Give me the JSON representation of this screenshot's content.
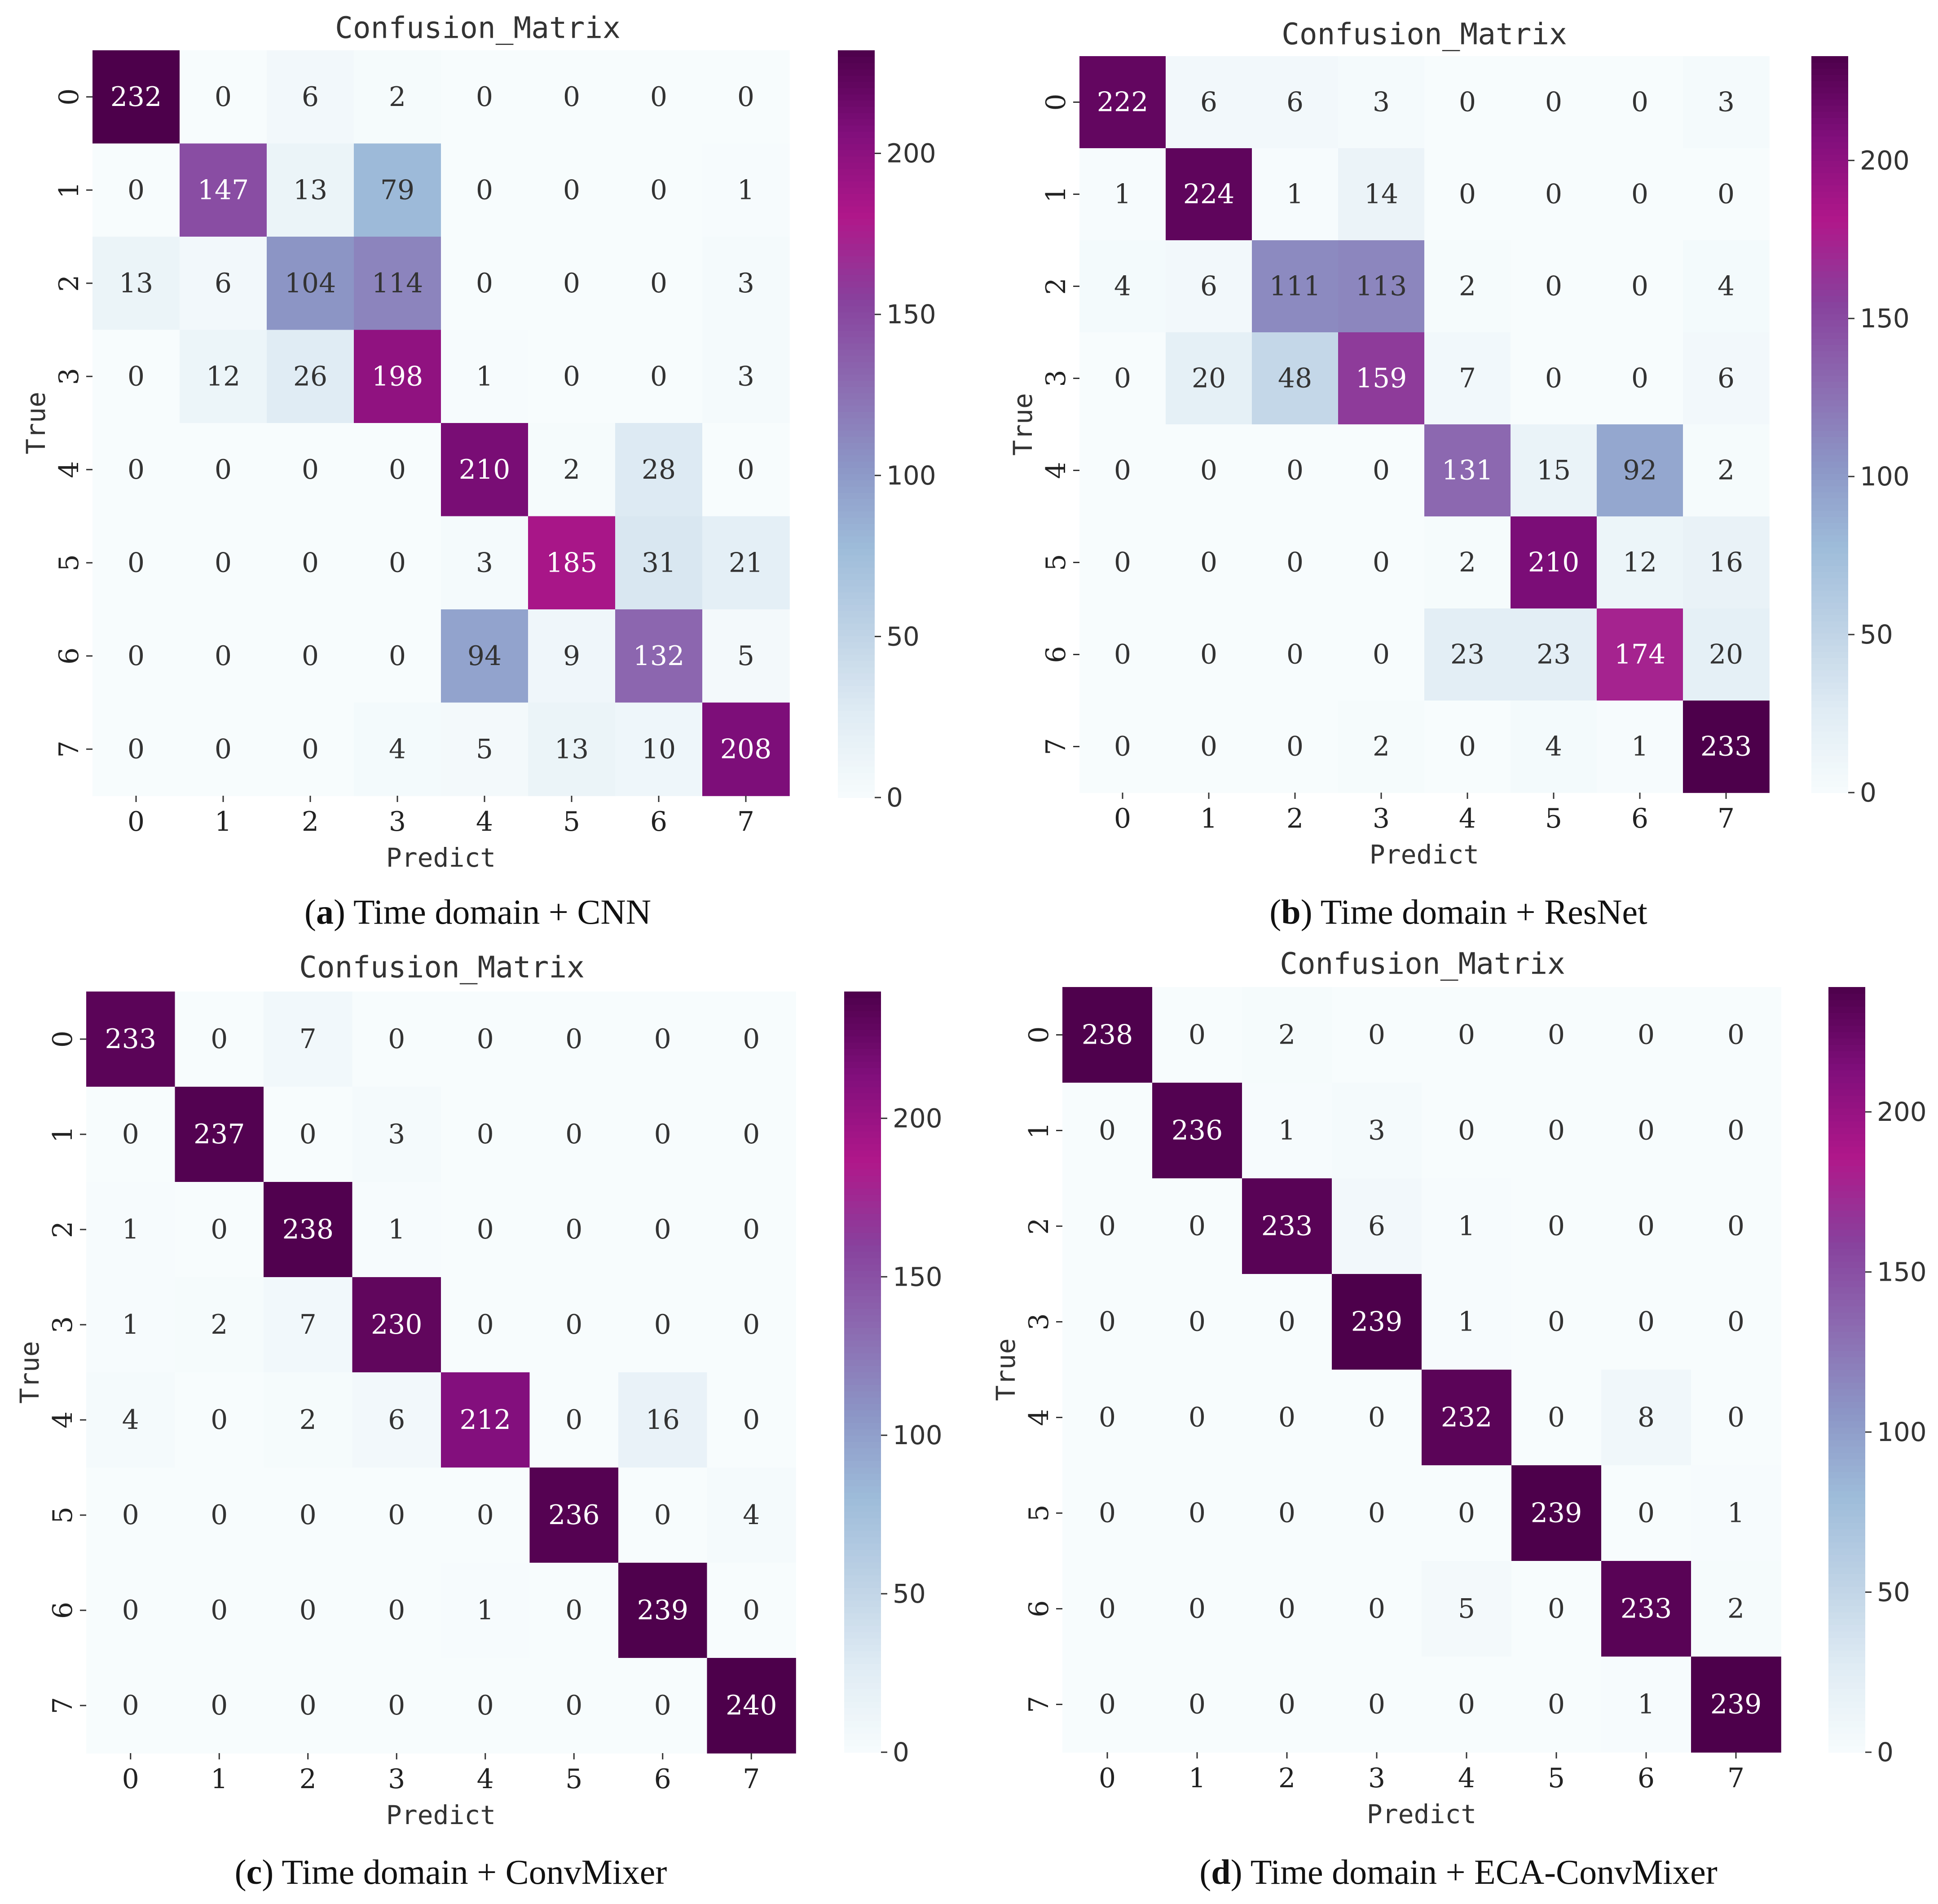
{
  "panels": [
    {
      "caption_letter": "a",
      "caption_text": " Time domain + CNN",
      "colorbar_max": 232,
      "chart_data": {
        "type": "heatmap",
        "title": "Confusion_Matrix",
        "xlabel": "Predict",
        "ylabel": "True",
        "x_ticks": [
          "0",
          "1",
          "2",
          "3",
          "4",
          "5",
          "6",
          "7"
        ],
        "y_ticks": [
          "0",
          "1",
          "2",
          "3",
          "4",
          "5",
          "6",
          "7"
        ],
        "colorbar_ticks": [
          0,
          50,
          100,
          150,
          200
        ],
        "values": [
          [
            232,
            0,
            6,
            2,
            0,
            0,
            0,
            0
          ],
          [
            0,
            147,
            13,
            79,
            0,
            0,
            0,
            1
          ],
          [
            13,
            6,
            104,
            114,
            0,
            0,
            0,
            3
          ],
          [
            0,
            12,
            26,
            198,
            1,
            0,
            0,
            3
          ],
          [
            0,
            0,
            0,
            0,
            210,
            2,
            28,
            0
          ],
          [
            0,
            0,
            0,
            0,
            3,
            185,
            31,
            21
          ],
          [
            0,
            0,
            0,
            0,
            94,
            9,
            132,
            5
          ],
          [
            0,
            0,
            0,
            4,
            5,
            13,
            10,
            208
          ]
        ]
      }
    },
    {
      "caption_letter": "b",
      "caption_text": " Time domain + ResNet",
      "colorbar_max": 233,
      "chart_data": {
        "type": "heatmap",
        "title": "Confusion_Matrix",
        "xlabel": "Predict",
        "ylabel": "True",
        "x_ticks": [
          "0",
          "1",
          "2",
          "3",
          "4",
          "5",
          "6",
          "7"
        ],
        "y_ticks": [
          "0",
          "1",
          "2",
          "3",
          "4",
          "5",
          "6",
          "7"
        ],
        "colorbar_ticks": [
          0,
          50,
          100,
          150,
          200
        ],
        "values": [
          [
            222,
            6,
            6,
            3,
            0,
            0,
            0,
            3
          ],
          [
            1,
            224,
            1,
            14,
            0,
            0,
            0,
            0
          ],
          [
            4,
            6,
            111,
            113,
            2,
            0,
            0,
            4
          ],
          [
            0,
            20,
            48,
            159,
            7,
            0,
            0,
            6
          ],
          [
            0,
            0,
            0,
            0,
            131,
            15,
            92,
            2
          ],
          [
            0,
            0,
            0,
            0,
            2,
            210,
            12,
            16
          ],
          [
            0,
            0,
            0,
            0,
            23,
            23,
            174,
            20
          ],
          [
            0,
            0,
            0,
            2,
            0,
            4,
            1,
            233
          ]
        ]
      }
    },
    {
      "caption_letter": "c",
      "caption_text": " Time domain + ConvMixer",
      "colorbar_max": 240,
      "chart_data": {
        "type": "heatmap",
        "title": "Confusion_Matrix",
        "xlabel": "Predict",
        "ylabel": "True",
        "x_ticks": [
          "0",
          "1",
          "2",
          "3",
          "4",
          "5",
          "6",
          "7"
        ],
        "y_ticks": [
          "0",
          "1",
          "2",
          "3",
          "4",
          "5",
          "6",
          "7"
        ],
        "colorbar_ticks": [
          0,
          50,
          100,
          150,
          200
        ],
        "values": [
          [
            233,
            0,
            7,
            0,
            0,
            0,
            0,
            0
          ],
          [
            0,
            237,
            0,
            3,
            0,
            0,
            0,
            0
          ],
          [
            1,
            0,
            238,
            1,
            0,
            0,
            0,
            0
          ],
          [
            1,
            2,
            7,
            230,
            0,
            0,
            0,
            0
          ],
          [
            4,
            0,
            2,
            6,
            212,
            0,
            16,
            0
          ],
          [
            0,
            0,
            0,
            0,
            0,
            236,
            0,
            4
          ],
          [
            0,
            0,
            0,
            0,
            1,
            0,
            239,
            0
          ],
          [
            0,
            0,
            0,
            0,
            0,
            0,
            0,
            240
          ]
        ]
      }
    },
    {
      "caption_letter": "d",
      "caption_text": " Time domain + ECA-ConvMixer",
      "colorbar_max": 239,
      "chart_data": {
        "type": "heatmap",
        "title": "Confusion_Matrix",
        "xlabel": "Predict",
        "ylabel": "True",
        "x_ticks": [
          "0",
          "1",
          "2",
          "3",
          "4",
          "5",
          "6",
          "7"
        ],
        "y_ticks": [
          "0",
          "1",
          "2",
          "3",
          "4",
          "5",
          "6",
          "7"
        ],
        "colorbar_ticks": [
          0,
          50,
          100,
          150,
          200
        ],
        "values": [
          [
            238,
            0,
            2,
            0,
            0,
            0,
            0,
            0
          ],
          [
            0,
            236,
            1,
            3,
            0,
            0,
            0,
            0
          ],
          [
            0,
            0,
            233,
            6,
            1,
            0,
            0,
            0
          ],
          [
            0,
            0,
            0,
            239,
            1,
            0,
            0,
            0
          ],
          [
            0,
            0,
            0,
            0,
            232,
            0,
            8,
            0
          ],
          [
            0,
            0,
            0,
            0,
            0,
            239,
            0,
            1
          ],
          [
            0,
            0,
            0,
            0,
            5,
            0,
            233,
            2
          ],
          [
            0,
            0,
            0,
            0,
            0,
            0,
            1,
            239
          ]
        ]
      }
    }
  ],
  "colormap": [
    "#f7fcfd",
    "#e0ecf4",
    "#bfd3e6",
    "#9ebcda",
    "#8c96c6",
    "#8c6bb1",
    "#88419d",
    "#b0178a",
    "#810f7c",
    "#4d004b"
  ]
}
